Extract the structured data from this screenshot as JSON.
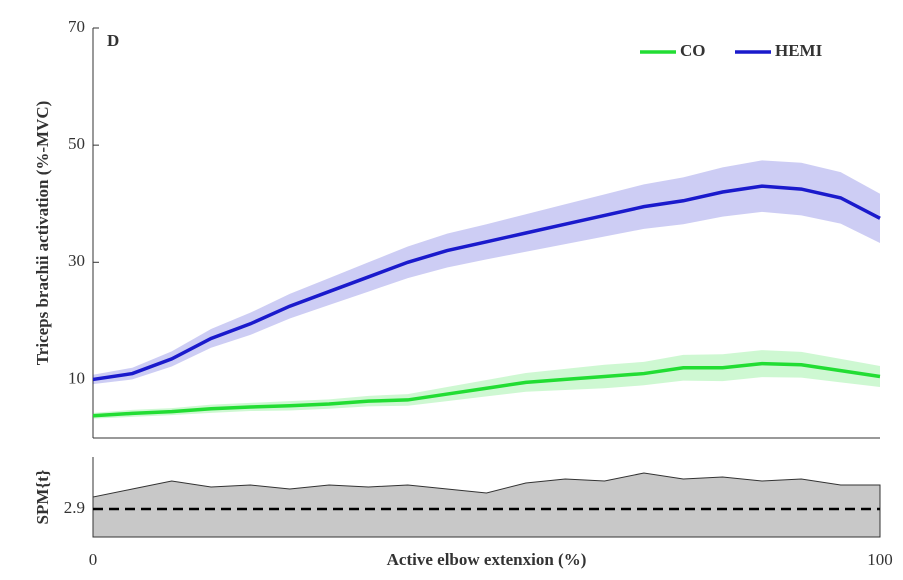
{
  "chart_data": [
    {
      "type": "line",
      "panel_label": "D",
      "ylabel": "Triceps brachii activation (%-MVC)",
      "x": [
        0,
        5,
        10,
        15,
        20,
        25,
        30,
        35,
        40,
        45,
        50,
        55,
        60,
        65,
        70,
        75,
        80,
        85,
        90,
        95,
        100
      ],
      "xlim": [
        0,
        100
      ],
      "ylim": [
        0,
        70
      ],
      "yticks": [
        10,
        30,
        50,
        70
      ],
      "legend": "upper right",
      "series": [
        {
          "name": "CO",
          "color": "#22dd33",
          "values": [
            3.8,
            4.2,
            4.5,
            5,
            5.3,
            5.5,
            5.8,
            6.3,
            6.5,
            7.5,
            8.5,
            9.5,
            10,
            10.5,
            11,
            12,
            12,
            12.7,
            12.5,
            11.5,
            10.5
          ],
          "ci": [
            0.5,
            0.6,
            0.6,
            0.7,
            0.7,
            0.8,
            0.8,
            0.9,
            1,
            1.2,
            1.4,
            1.6,
            1.8,
            2,
            2,
            2.2,
            2.3,
            2.3,
            2.2,
            2,
            1.8
          ]
        },
        {
          "name": "HEMI",
          "color": "#1a1acc",
          "values": [
            10,
            11,
            13.5,
            17,
            19.5,
            22.5,
            25,
            27.5,
            30,
            32,
            33.5,
            35,
            36.5,
            38,
            39.5,
            40.5,
            42,
            43,
            42.5,
            41,
            37.5
          ],
          "ci": [
            0.8,
            1,
            1.3,
            1.6,
            1.9,
            2.1,
            2.3,
            2.5,
            2.7,
            2.9,
            3,
            3.2,
            3.4,
            3.6,
            3.8,
            4,
            4.2,
            4.4,
            4.5,
            4.4,
            4.2
          ]
        }
      ]
    },
    {
      "type": "area",
      "ylabel": "SPM{t}",
      "xlabel": "Active elbow extenxion (%)",
      "x": [
        0,
        5,
        10,
        15,
        20,
        25,
        30,
        35,
        40,
        45,
        50,
        55,
        60,
        65,
        70,
        75,
        80,
        85,
        90,
        95,
        100
      ],
      "xlim": [
        0,
        100
      ],
      "xticks": [
        0,
        100
      ],
      "ylim": [
        1.5,
        5.5
      ],
      "yticks": [
        2.9
      ],
      "threshold": 2.9,
      "color": "#c8c8c8",
      "values": [
        3.5,
        3.9,
        4.3,
        4.0,
        4.1,
        3.9,
        4.1,
        4.0,
        4.1,
        3.9,
        3.7,
        4.2,
        4.4,
        4.3,
        4.7,
        4.4,
        4.5,
        4.3,
        4.4,
        4.1,
        4.1
      ]
    }
  ]
}
